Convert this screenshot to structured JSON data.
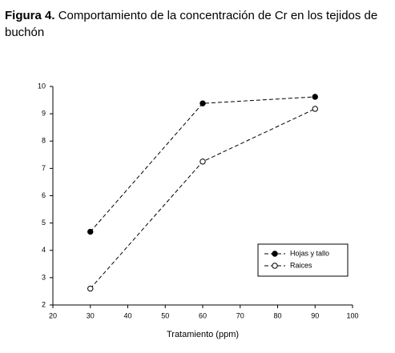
{
  "figure": {
    "label": "Figura 4.",
    "caption_line1": "Comportamiento de la concentración de Cr en los tejidos de",
    "caption_line2": "buchón"
  },
  "chart_data": {
    "type": "line",
    "x_label": "Tratamiento (ppm)",
    "x": [
      30,
      60,
      90
    ],
    "series": [
      {
        "name": "Hojas y tallo",
        "color": "#000000",
        "marker": "filled",
        "values": [
          4.68,
          9.38,
          9.62
        ]
      },
      {
        "name": "Raices",
        "color": "#000000",
        "marker": "open",
        "values": [
          2.6,
          7.25,
          9.18
        ]
      }
    ],
    "xlim": [
      20,
      100
    ],
    "xticks": [
      20,
      30,
      40,
      50,
      60,
      70,
      80,
      90,
      100
    ],
    "ylim": [
      2,
      10
    ],
    "yticks": [
      2,
      3,
      4,
      5,
      6,
      7,
      8,
      9,
      10
    ],
    "grid": false,
    "legend": "lower right"
  }
}
